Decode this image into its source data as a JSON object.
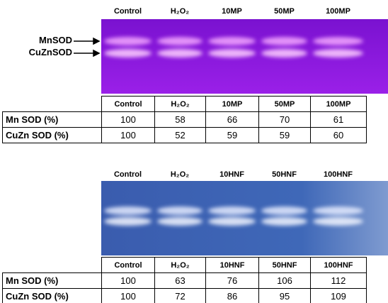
{
  "panels": [
    {
      "lanes": [
        "Control",
        "H₂O₂",
        "10MP",
        "50MP",
        "100MP"
      ],
      "band_labels": [
        "MnSOD",
        "CuZnSOD"
      ],
      "table": {
        "header": [
          "Control",
          "H₂O₂",
          "10MP",
          "50MP",
          "100MP"
        ],
        "rows": [
          [
            "Mn SOD (%)",
            100,
            58,
            66,
            70,
            61
          ],
          [
            "CuZn SOD (%)",
            100,
            52,
            59,
            59,
            60
          ]
        ]
      }
    },
    {
      "lanes": [
        "Control",
        "H₂O₂",
        "10HNF",
        "50HNF",
        "100HNF"
      ],
      "table": {
        "header": [
          "Control",
          "H₂O₂",
          "10HNF",
          "50HNF",
          "100HNF"
        ],
        "rows": [
          [
            "Mn SOD (%)",
            100,
            63,
            76,
            106,
            112
          ],
          [
            "CuZn SOD (%)",
            100,
            72,
            86,
            95,
            109
          ]
        ]
      }
    }
  ]
}
